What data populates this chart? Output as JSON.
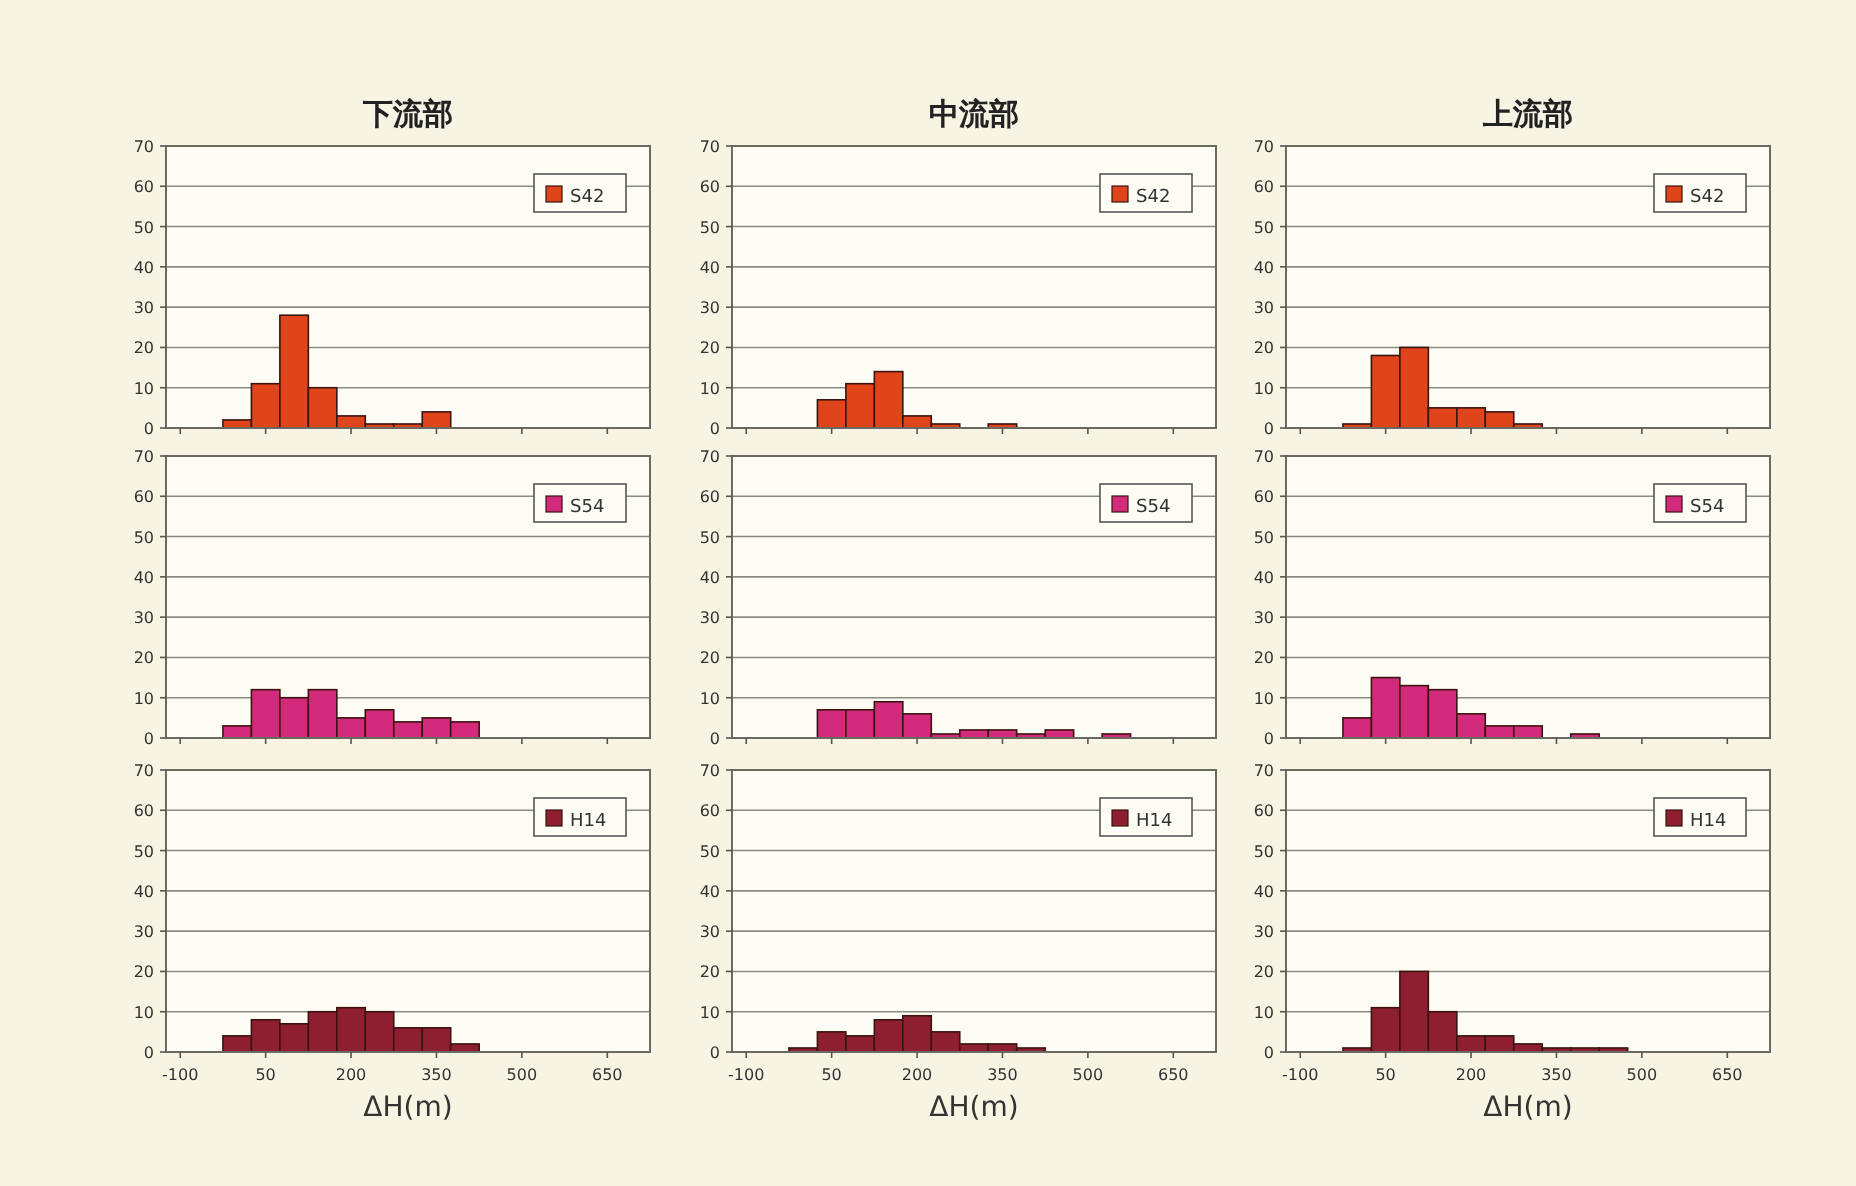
{
  "chart_data": [
    {
      "type": "histogram",
      "title": "下流部",
      "bins": [
        -25,
        25,
        75,
        125,
        175,
        225,
        275,
        325,
        375
      ],
      "series": [
        {
          "name": "S42",
          "color": "#e0441a",
          "values": [
            2,
            11,
            28,
            10,
            3,
            1,
            1,
            4
          ]
        }
      ],
      "xlim": [
        -125,
        725
      ],
      "xticks": [
        -100,
        50,
        200,
        350,
        500,
        650
      ],
      "ylim": [
        0,
        70
      ],
      "yticks": [
        0,
        10,
        20,
        30,
        40,
        50,
        60,
        70
      ],
      "grid": "y",
      "legend": "top right",
      "tick_labels": "y"
    },
    {
      "type": "histogram",
      "title": "中流部",
      "bins": [
        25,
        75,
        125,
        175,
        225,
        275,
        325,
        375
      ],
      "series": [
        {
          "name": "S42",
          "color": "#e0441a",
          "values": [
            7,
            11,
            14,
            3,
            1,
            0,
            1
          ]
        }
      ],
      "xlim": [
        -125,
        725
      ],
      "xticks": [
        -100,
        50,
        200,
        350,
        500,
        650
      ],
      "ylim": [
        0,
        70
      ],
      "yticks": [
        0,
        10,
        20,
        30,
        40,
        50,
        60,
        70
      ],
      "grid": "y",
      "legend": "top right",
      "tick_labels": "y"
    },
    {
      "type": "histogram",
      "title": "上流部",
      "bins": [
        -25,
        25,
        75,
        125,
        175,
        225,
        275,
        325
      ],
      "series": [
        {
          "name": "S42",
          "color": "#e0441a",
          "values": [
            1,
            18,
            20,
            5,
            5,
            4,
            1
          ]
        }
      ],
      "xlim": [
        -125,
        725
      ],
      "xticks": [
        -100,
        50,
        200,
        350,
        500,
        650
      ],
      "ylim": [
        0,
        70
      ],
      "yticks": [
        0,
        10,
        20,
        30,
        40,
        50,
        60,
        70
      ],
      "grid": "y",
      "legend": "top right",
      "tick_labels": "y"
    },
    {
      "type": "histogram",
      "bins": [
        -25,
        25,
        75,
        125,
        175,
        225,
        275,
        325,
        375,
        425
      ],
      "series": [
        {
          "name": "S54",
          "color": "#d42a7c",
          "values": [
            3,
            12,
            10,
            12,
            5,
            7,
            4,
            5,
            4
          ]
        }
      ],
      "xlim": [
        -125,
        725
      ],
      "xticks": [
        -100,
        50,
        200,
        350,
        500,
        650
      ],
      "ylim": [
        0,
        70
      ],
      "yticks": [
        0,
        10,
        20,
        30,
        40,
        50,
        60,
        70
      ],
      "grid": "y",
      "legend": "top right",
      "tick_labels": "y"
    },
    {
      "type": "histogram",
      "bins": [
        25,
        75,
        125,
        175,
        225,
        275,
        325,
        375,
        425,
        475,
        525,
        575
      ],
      "series": [
        {
          "name": "S54",
          "color": "#d42a7c",
          "values": [
            7,
            7,
            9,
            6,
            1,
            2,
            2,
            1,
            2,
            0,
            1
          ]
        }
      ],
      "xlim": [
        -125,
        725
      ],
      "xticks": [
        -100,
        50,
        200,
        350,
        500,
        650
      ],
      "ylim": [
        0,
        70
      ],
      "yticks": [
        0,
        10,
        20,
        30,
        40,
        50,
        60,
        70
      ],
      "grid": "y",
      "legend": "top right",
      "tick_labels": "y"
    },
    {
      "type": "histogram",
      "bins": [
        -25,
        25,
        75,
        125,
        175,
        225,
        275,
        325,
        375,
        425
      ],
      "series": [
        {
          "name": "S54",
          "color": "#d42a7c",
          "values": [
            5,
            15,
            13,
            12,
            6,
            3,
            3,
            0,
            1
          ]
        }
      ],
      "xlim": [
        -125,
        725
      ],
      "xticks": [
        -100,
        50,
        200,
        350,
        500,
        650
      ],
      "ylim": [
        0,
        70
      ],
      "yticks": [
        0,
        10,
        20,
        30,
        40,
        50,
        60,
        70
      ],
      "grid": "y",
      "legend": "top right",
      "tick_labels": "y"
    },
    {
      "type": "histogram",
      "xlabel": "ΔH(m)",
      "bins": [
        -25,
        25,
        75,
        125,
        175,
        225,
        275,
        325,
        375,
        425
      ],
      "series": [
        {
          "name": "H14",
          "color": "#8e1f30",
          "values": [
            4,
            8,
            7,
            10,
            11,
            10,
            6,
            6,
            2
          ]
        }
      ],
      "xlim": [
        -125,
        725
      ],
      "xticks": [
        -100,
        50,
        200,
        350,
        500,
        650
      ],
      "ylim": [
        0,
        70
      ],
      "yticks": [
        0,
        10,
        20,
        30,
        40,
        50,
        60,
        70
      ],
      "grid": "y",
      "legend": "top right"
    },
    {
      "type": "histogram",
      "xlabel": "ΔH(m)",
      "bins": [
        -25,
        25,
        75,
        125,
        175,
        225,
        275,
        325,
        375,
        425
      ],
      "series": [
        {
          "name": "H14",
          "color": "#8e1f30",
          "values": [
            1,
            5,
            4,
            8,
            9,
            5,
            2,
            2,
            1
          ]
        }
      ],
      "xlim": [
        -125,
        725
      ],
      "xticks": [
        -100,
        50,
        200,
        350,
        500,
        650
      ],
      "ylim": [
        0,
        70
      ],
      "yticks": [
        0,
        10,
        20,
        30,
        40,
        50,
        60,
        70
      ],
      "grid": "y",
      "legend": "top right"
    },
    {
      "type": "histogram",
      "xlabel": "ΔH(m)",
      "bins": [
        -25,
        25,
        75,
        125,
        175,
        225,
        275,
        325,
        375,
        425,
        475
      ],
      "series": [
        {
          "name": "H14",
          "color": "#8e1f30",
          "values": [
            1,
            11,
            20,
            10,
            4,
            4,
            2,
            1,
            1,
            1
          ]
        }
      ],
      "xlim": [
        -125,
        725
      ],
      "xticks": [
        -100,
        50,
        200,
        350,
        500,
        650
      ],
      "ylim": [
        0,
        70
      ],
      "yticks": [
        0,
        10,
        20,
        30,
        40,
        50,
        60,
        70
      ],
      "grid": "y",
      "legend": "top right"
    }
  ]
}
